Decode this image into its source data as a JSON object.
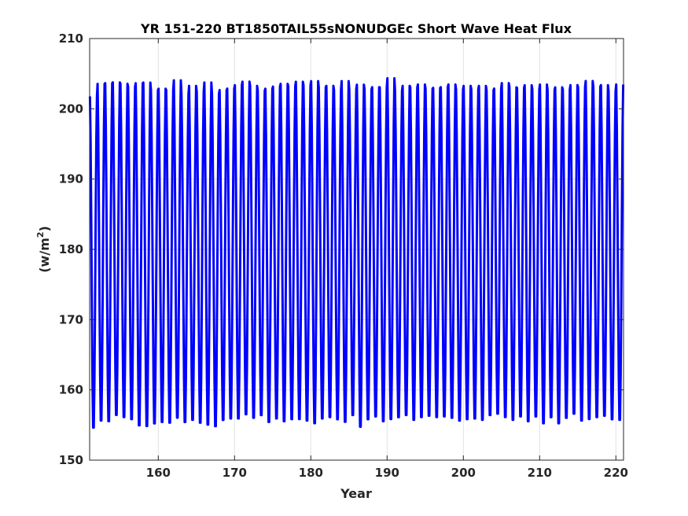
{
  "chart_data": {
    "type": "line",
    "title": "YR 151-220 BT1850TAIL55sNONUDGEc Short Wave Heat Flux",
    "xlabel": "Year",
    "ylabel": "(w/m",
    "ylabel_sup": "2",
    "ylabel_close": ")",
    "xlim": [
      151,
      221
    ],
    "ylim": [
      150,
      210
    ],
    "xticks": [
      160,
      170,
      180,
      190,
      200,
      210,
      220
    ],
    "yticks": [
      150,
      160,
      170,
      180,
      190,
      200,
      210
    ],
    "xtick_labels": [
      "160",
      "170",
      "180",
      "190",
      "200",
      "210",
      "220"
    ],
    "ytick_labels": [
      "150",
      "160",
      "170",
      "180",
      "190",
      "200",
      "210"
    ],
    "grid": true,
    "series": [
      {
        "color": "#0000ff",
        "sampling": "monthly",
        "start_year": 151,
        "annual_max": [
          202.6,
          204.4,
          204.5,
          204.6,
          204.4,
          204.0,
          204.5,
          204.6,
          203.5,
          203.7,
          203.5,
          204.9,
          202.9,
          204.1,
          203.3,
          204.6,
          203.0,
          203.5,
          203.7,
          204.2,
          204.7,
          204.1,
          203.4,
          203.7,
          204.0,
          204.4,
          204.1,
          204.7,
          204.2,
          204.8,
          203.9,
          204.1,
          203.5,
          204.8,
          203.6,
          204.3,
          203.6,
          203.9,
          203.9,
          205.2,
          203.4,
          204.1,
          203.9,
          204.3,
          203.7,
          203.8,
          203.9,
          204.3,
          203.6,
          204.1,
          203.6,
          204.1,
          203.5,
          203.7,
          204.5,
          203.9,
          203.8,
          204.2,
          203.6,
          204.3,
          203.5,
          203.9,
          203.6,
          204.2,
          203.9,
          204.8,
          204.0,
          204.2,
          203.3,
          204.3
        ],
        "annual_min": [
          153.8,
          154.8,
          154.7,
          155.6,
          155.3,
          155.0,
          154.1,
          154.0,
          154.4,
          154.6,
          154.5,
          155.2,
          154.6,
          154.9,
          154.5,
          154.2,
          154.0,
          154.9,
          155.1,
          155.1,
          155.7,
          155.2,
          155.6,
          154.6,
          155.1,
          154.7,
          155.0,
          155.0,
          154.8,
          154.4,
          155.1,
          155.3,
          155.0,
          154.6,
          155.6,
          153.9,
          155.0,
          155.4,
          154.7,
          155.0,
          155.3,
          155.6,
          154.9,
          155.3,
          155.5,
          155.3,
          155.4,
          155.2,
          154.8,
          155.0,
          155.1,
          154.9,
          155.6,
          155.8,
          155.3,
          154.9,
          155.4,
          154.7,
          155.4,
          154.4,
          155.3,
          154.4,
          155.2,
          155.8,
          154.8,
          155.0,
          155.3,
          155.5,
          155.0,
          154.9
        ]
      }
    ]
  }
}
